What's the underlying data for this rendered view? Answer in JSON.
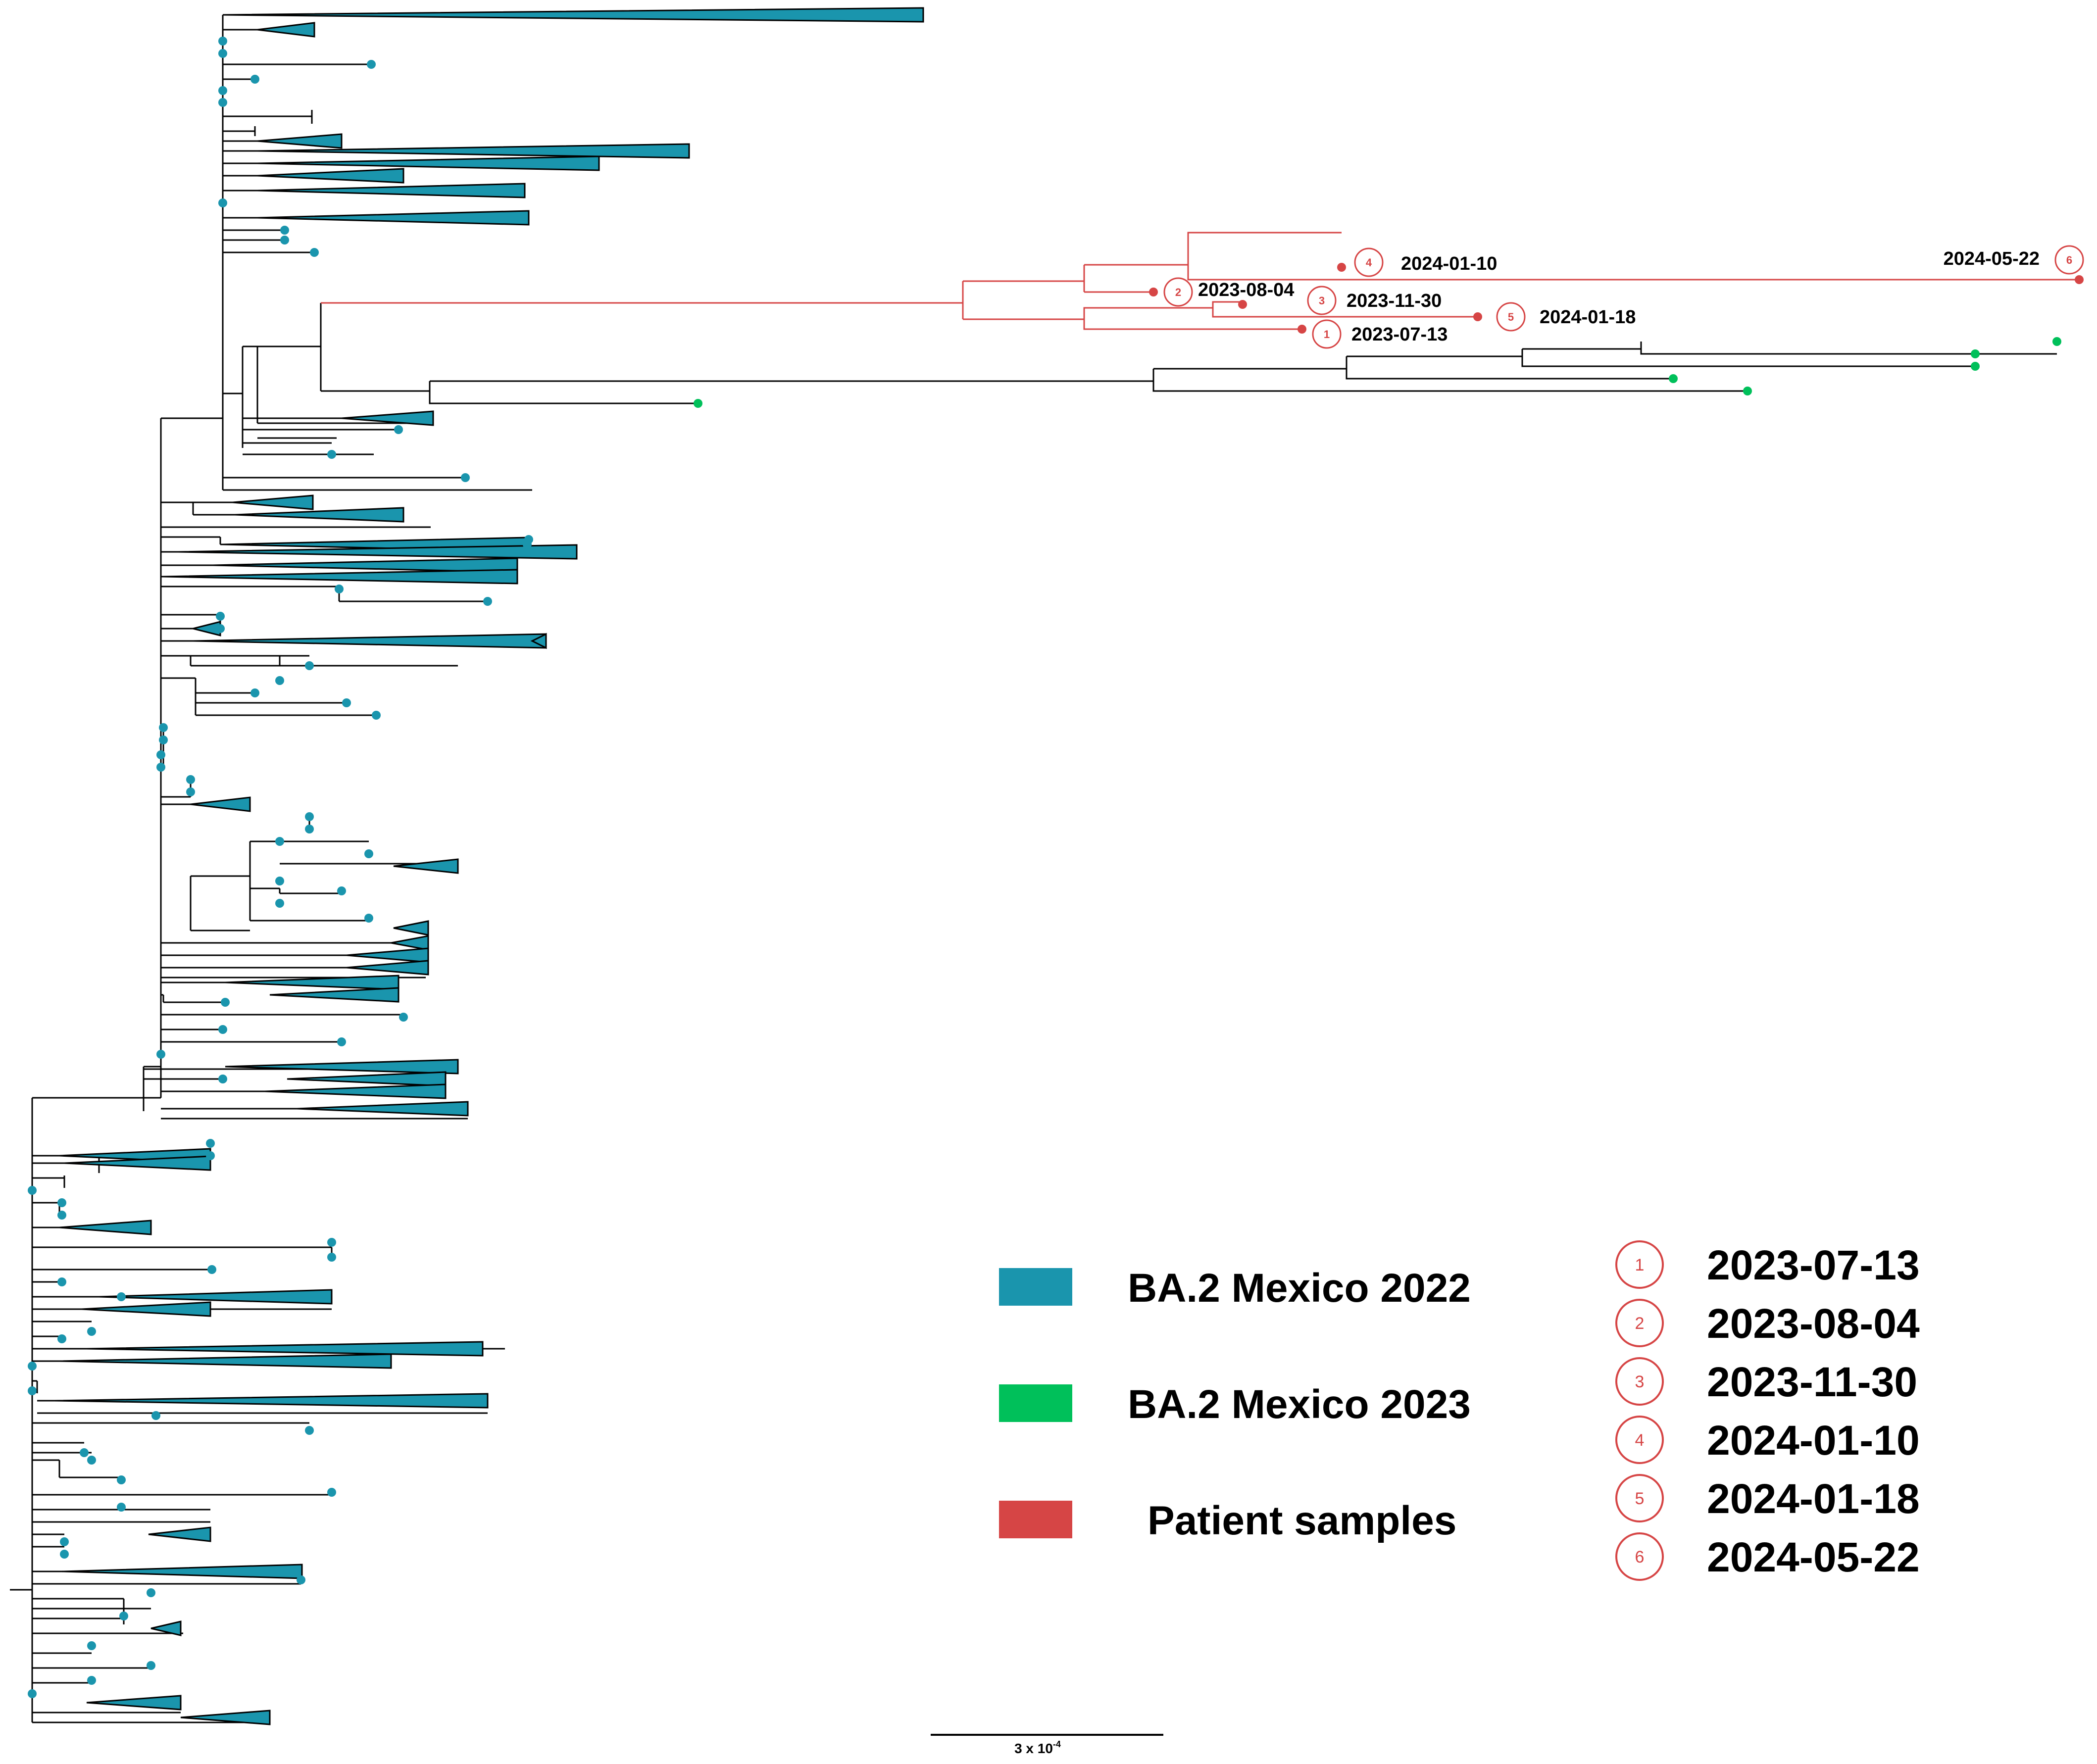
{
  "colors": {
    "ba2_2022": "#1a95ad",
    "ba2_2023": "#00c05a",
    "patient": "#d64545",
    "branch": "#000000"
  },
  "legend": {
    "items": [
      {
        "label": "BA.2 Mexico 2022",
        "color": "#1a95ad"
      },
      {
        "label": "BA.2 Mexico 2023",
        "color": "#00c05a"
      },
      {
        "label": "Patient samples",
        "color": "#d64545"
      }
    ]
  },
  "sample_dates": [
    {
      "num": "1",
      "date": "2023-07-13"
    },
    {
      "num": "2",
      "date": "2023-08-04"
    },
    {
      "num": "3",
      "date": "2023-11-30"
    },
    {
      "num": "4",
      "date": "2024-01-10"
    },
    {
      "num": "5",
      "date": "2024-01-18"
    },
    {
      "num": "6",
      "date": "2024-05-22"
    }
  ],
  "patient_tips": [
    {
      "num": "4",
      "date": "2024-01-10"
    },
    {
      "num": "2",
      "date": "2023-08-04"
    },
    {
      "num": "3",
      "date": "2023-11-30"
    },
    {
      "num": "5",
      "date": "2024-01-18"
    },
    {
      "num": "1",
      "date": "2023-07-13"
    },
    {
      "num": "6",
      "date": "2024-05-22"
    }
  ],
  "scale_bar": {
    "label_base": "3 x 10",
    "label_exp": "-4"
  }
}
